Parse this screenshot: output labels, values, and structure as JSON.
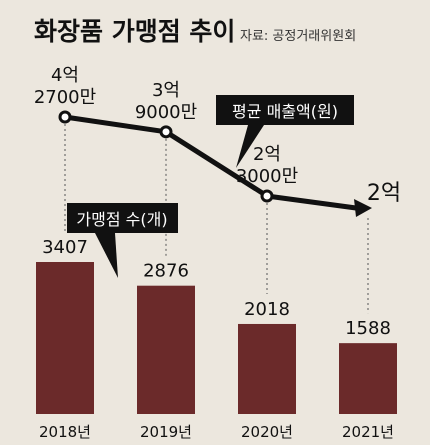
{
  "title": "화장품 가맹점 추이",
  "source": "자료: 공정거래위원회",
  "colors": {
    "background": "#ece7de",
    "bar": "#6b2a2a",
    "line": "#111111",
    "label_box": "#111111",
    "label_box_text": "#ffffff",
    "guide": "#555555"
  },
  "chart_data": [
    {
      "type": "bar",
      "series_label": "가맹점 수(개)",
      "categories": [
        "2018년",
        "2019년",
        "2020년",
        "2021년"
      ],
      "values": [
        3407,
        2876,
        2018,
        1588
      ],
      "value_labels": [
        "3407",
        "2876",
        "2018",
        "1588"
      ],
      "ylim": [
        0,
        4000
      ]
    },
    {
      "type": "line",
      "series_label": "평균 매출액(원)",
      "categories": [
        "2018년",
        "2019년",
        "2020년",
        "2021년"
      ],
      "values": [
        427000000,
        390000000,
        230000000,
        200000000
      ],
      "value_labels": [
        [
          "4억",
          "2700만"
        ],
        [
          "3억",
          "9000만"
        ],
        [
          "2억",
          "3000만"
        ],
        [
          "2억"
        ]
      ]
    }
  ]
}
